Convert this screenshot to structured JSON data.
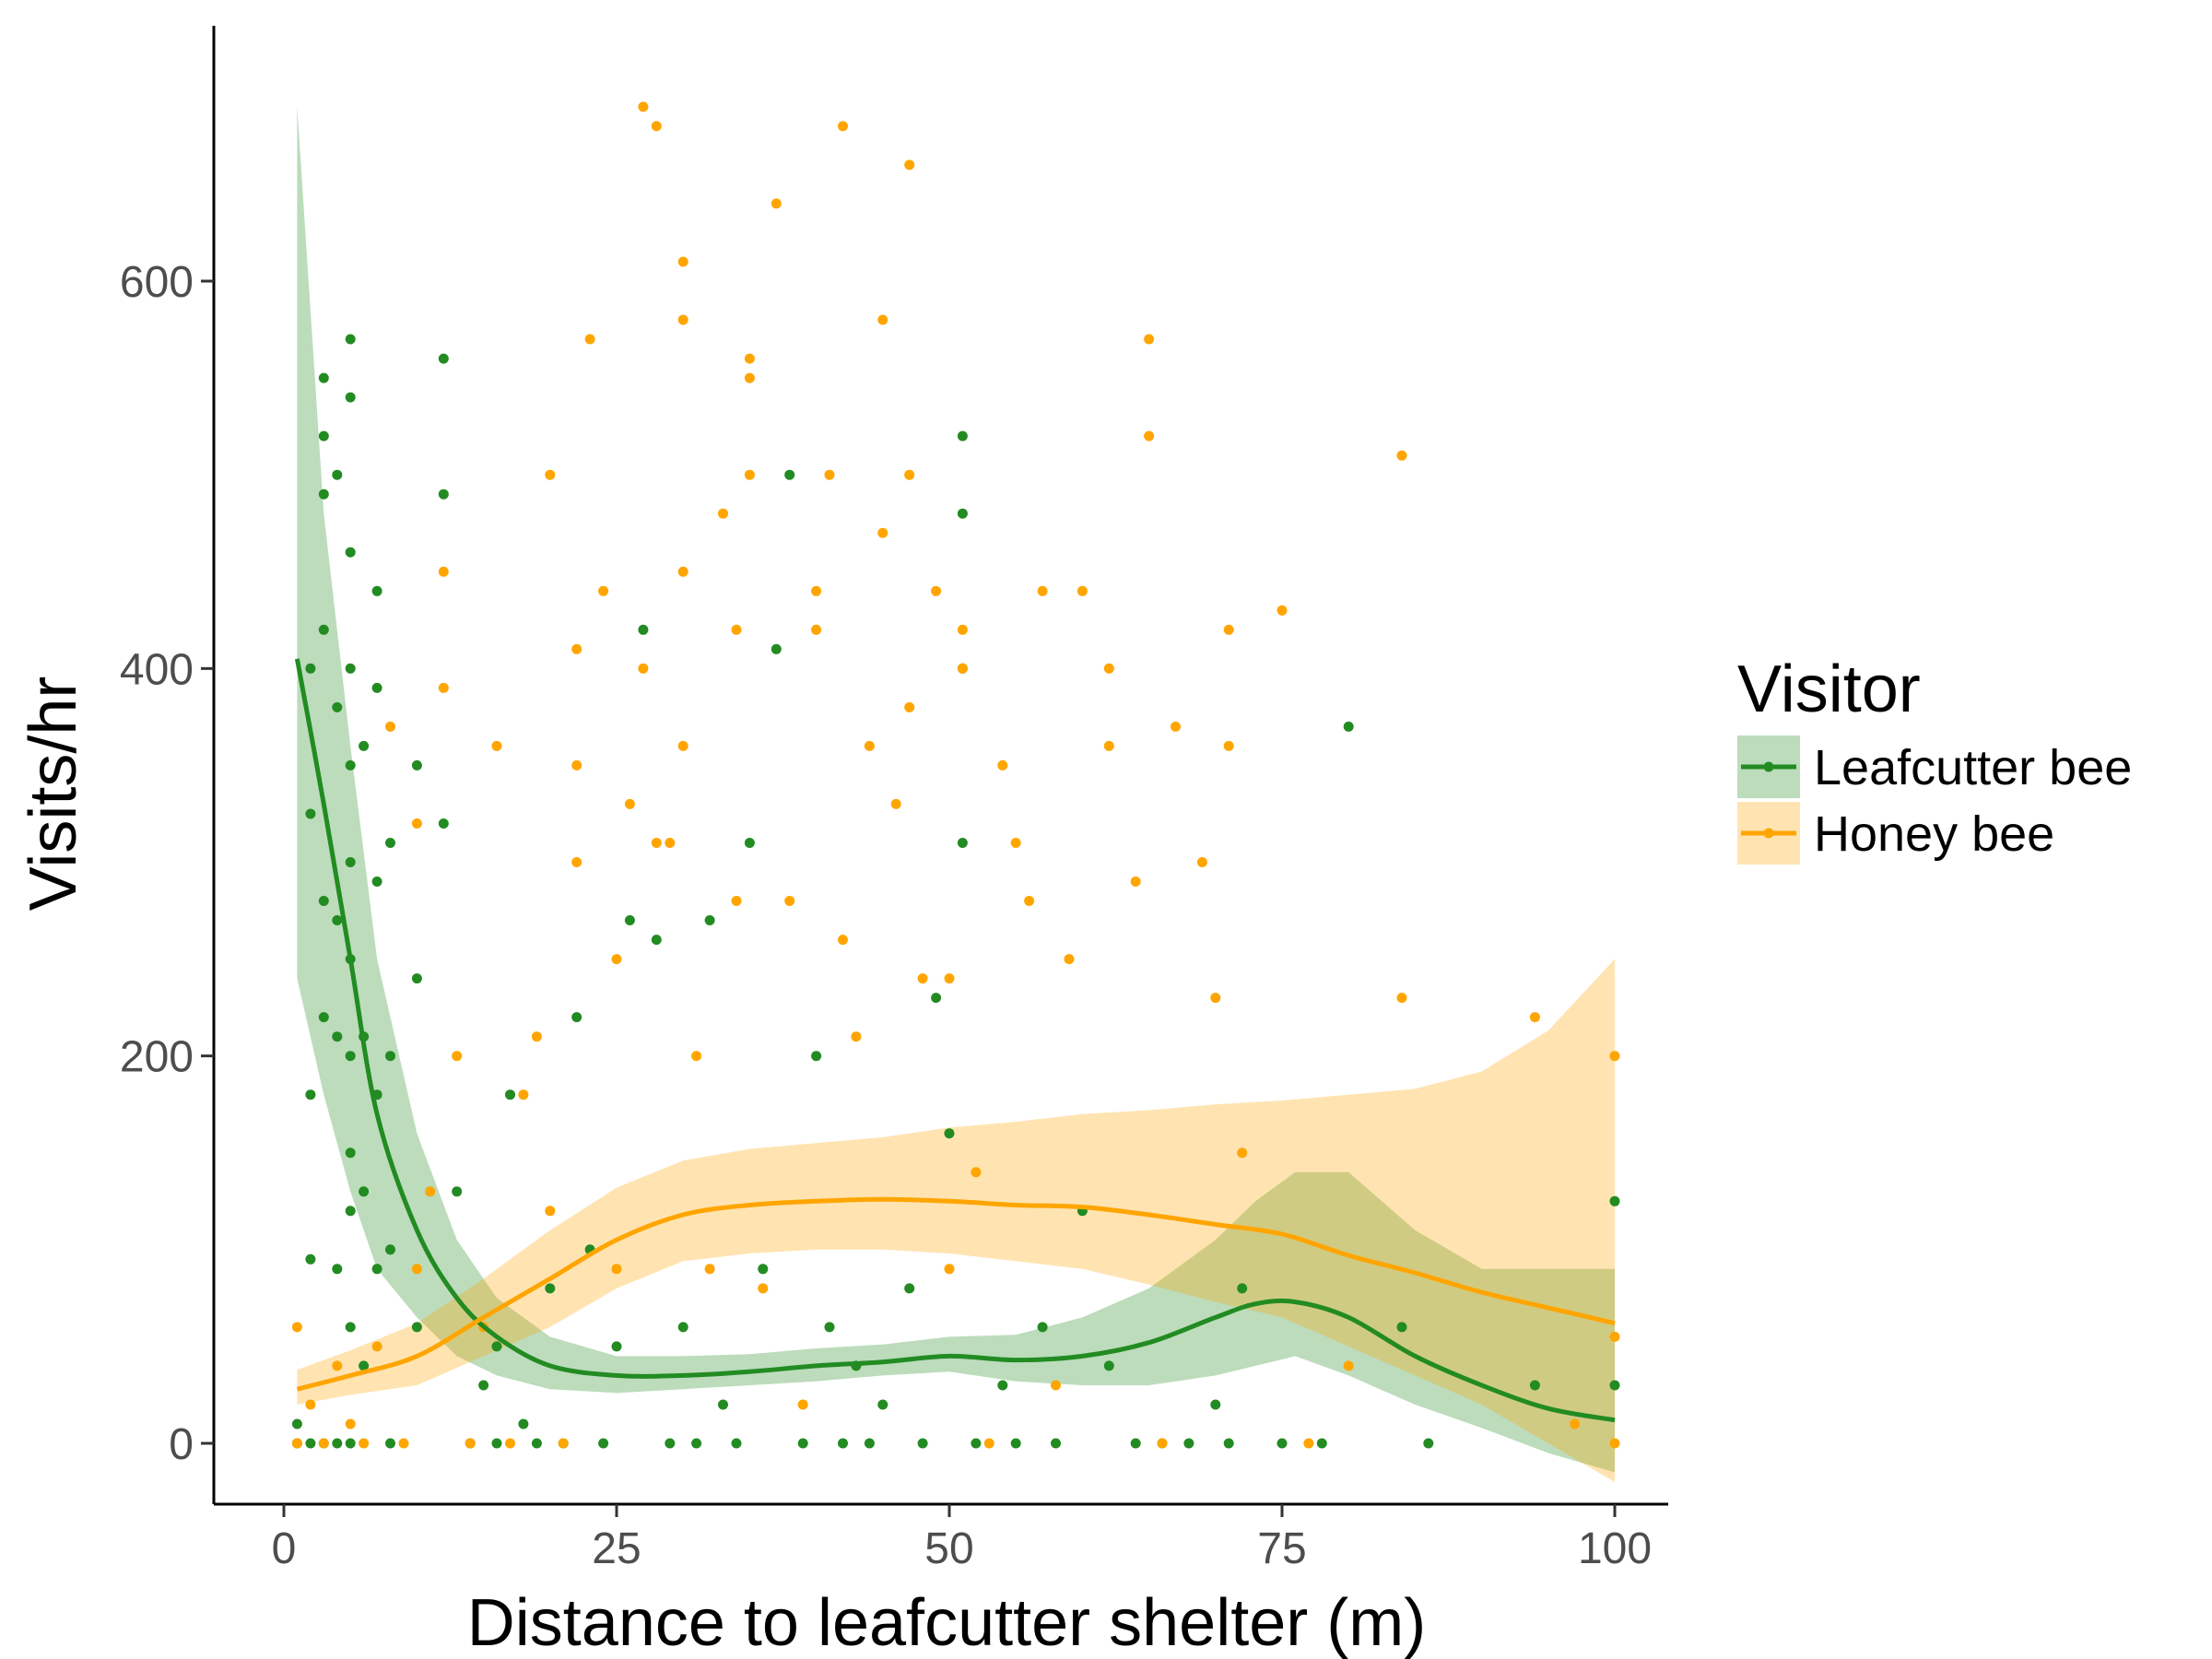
{
  "chart_data": {
    "type": "scatter",
    "xlabel": "Distance to leafcutter shelter (m)",
    "ylabel": "Visits/hr",
    "xlim": [
      -2,
      104
    ],
    "ylim": [
      -35,
      730
    ],
    "x_ticks": [
      0,
      25,
      50,
      75,
      100
    ],
    "y_ticks": [
      0,
      200,
      400,
      600
    ],
    "x_tick_labels": [
      "0",
      "25",
      "50",
      "75",
      "100"
    ],
    "y_tick_labels": [
      "0",
      "200",
      "400",
      "600"
    ],
    "grid": false,
    "legend": {
      "title": "Visitor",
      "position": "right",
      "entries": [
        "Leafcutter bee",
        "Honey bee"
      ]
    },
    "series": [
      {
        "name": "Leafcutter bee",
        "color": "#228B22",
        "band_color": "#228B22",
        "points": [
          [
            1,
            0
          ],
          [
            1,
            10
          ],
          [
            2,
            0
          ],
          [
            2,
            95
          ],
          [
            2,
            180
          ],
          [
            2,
            400
          ],
          [
            2,
            325
          ],
          [
            3,
            550
          ],
          [
            3,
            520
          ],
          [
            3,
            490
          ],
          [
            3,
            420
          ],
          [
            3,
            280
          ],
          [
            3,
            220
          ],
          [
            3,
            0
          ],
          [
            4,
            500
          ],
          [
            4,
            380
          ],
          [
            4,
            270
          ],
          [
            4,
            210
          ],
          [
            4,
            90
          ],
          [
            4,
            0
          ],
          [
            5,
            570
          ],
          [
            5,
            540
          ],
          [
            5,
            460
          ],
          [
            5,
            400
          ],
          [
            5,
            350
          ],
          [
            5,
            300
          ],
          [
            5,
            250
          ],
          [
            5,
            200
          ],
          [
            5,
            150
          ],
          [
            5,
            120
          ],
          [
            5,
            60
          ],
          [
            5,
            0
          ],
          [
            6,
            360
          ],
          [
            6,
            210
          ],
          [
            6,
            130
          ],
          [
            6,
            40
          ],
          [
            7,
            440
          ],
          [
            7,
            390
          ],
          [
            7,
            290
          ],
          [
            7,
            180
          ],
          [
            7,
            90
          ],
          [
            8,
            310
          ],
          [
            8,
            200
          ],
          [
            8,
            100
          ],
          [
            8,
            0
          ],
          [
            10,
            350
          ],
          [
            10,
            240
          ],
          [
            10,
            60
          ],
          [
            12,
            560
          ],
          [
            12,
            490
          ],
          [
            12,
            320
          ],
          [
            13,
            130
          ],
          [
            14,
            0
          ],
          [
            15,
            30
          ],
          [
            16,
            0
          ],
          [
            16,
            50
          ],
          [
            17,
            180
          ],
          [
            18,
            10
          ],
          [
            19,
            0
          ],
          [
            20,
            80
          ],
          [
            21,
            0
          ],
          [
            22,
            220
          ],
          [
            23,
            100
          ],
          [
            24,
            0
          ],
          [
            25,
            50
          ],
          [
            26,
            270
          ],
          [
            27,
            420
          ],
          [
            28,
            260
          ],
          [
            29,
            0
          ],
          [
            30,
            60
          ],
          [
            31,
            0
          ],
          [
            32,
            270
          ],
          [
            33,
            20
          ],
          [
            34,
            0
          ],
          [
            35,
            310
          ],
          [
            36,
            90
          ],
          [
            37,
            410
          ],
          [
            38,
            500
          ],
          [
            39,
            0
          ],
          [
            40,
            200
          ],
          [
            41,
            60
          ],
          [
            42,
            0
          ],
          [
            43,
            40
          ],
          [
            44,
            0
          ],
          [
            45,
            20
          ],
          [
            47,
            80
          ],
          [
            48,
            0
          ],
          [
            49,
            230
          ],
          [
            50,
            160
          ],
          [
            51,
            520
          ],
          [
            51,
            480
          ],
          [
            51,
            400
          ],
          [
            51,
            310
          ],
          [
            52,
            0
          ],
          [
            54,
            30
          ],
          [
            55,
            0
          ],
          [
            57,
            60
          ],
          [
            58,
            0
          ],
          [
            60,
            120
          ],
          [
            62,
            40
          ],
          [
            64,
            0
          ],
          [
            66,
            0
          ],
          [
            68,
            0
          ],
          [
            70,
            20
          ],
          [
            71,
            0
          ],
          [
            72,
            80
          ],
          [
            75,
            0
          ],
          [
            78,
            0
          ],
          [
            80,
            370
          ],
          [
            84,
            60
          ],
          [
            86,
            0
          ],
          [
            94,
            30
          ],
          [
            100,
            125
          ],
          [
            100,
            30
          ]
        ]
      },
      {
        "name": "Honey bee",
        "color": "#FFA500",
        "band_color": "#FFA500",
        "points": [
          [
            1,
            0
          ],
          [
            1,
            60
          ],
          [
            2,
            20
          ],
          [
            3,
            0
          ],
          [
            4,
            40
          ],
          [
            5,
            10
          ],
          [
            6,
            0
          ],
          [
            7,
            50
          ],
          [
            8,
            370
          ],
          [
            9,
            0
          ],
          [
            10,
            90
          ],
          [
            10,
            320
          ],
          [
            11,
            130
          ],
          [
            12,
            390
          ],
          [
            12,
            450
          ],
          [
            13,
            200
          ],
          [
            14,
            0
          ],
          [
            15,
            60
          ],
          [
            16,
            360
          ],
          [
            17,
            0
          ],
          [
            18,
            180
          ],
          [
            19,
            210
          ],
          [
            20,
            500
          ],
          [
            20,
            120
          ],
          [
            21,
            0
          ],
          [
            22,
            410
          ],
          [
            22,
            350
          ],
          [
            22,
            300
          ],
          [
            23,
            570
          ],
          [
            24,
            440
          ],
          [
            25,
            250
          ],
          [
            25,
            90
          ],
          [
            26,
            330
          ],
          [
            27,
            400
          ],
          [
            27,
            690
          ],
          [
            28,
            680
          ],
          [
            28,
            310
          ],
          [
            29,
            310
          ],
          [
            30,
            610
          ],
          [
            30,
            580
          ],
          [
            30,
            450
          ],
          [
            30,
            360
          ],
          [
            31,
            200
          ],
          [
            32,
            90
          ],
          [
            33,
            480
          ],
          [
            34,
            420
          ],
          [
            34,
            280
          ],
          [
            35,
            560
          ],
          [
            35,
            550
          ],
          [
            35,
            500
          ],
          [
            36,
            80
          ],
          [
            37,
            640
          ],
          [
            38,
            280
          ],
          [
            39,
            20
          ],
          [
            40,
            440
          ],
          [
            40,
            420
          ],
          [
            41,
            500
          ],
          [
            42,
            260
          ],
          [
            42,
            680
          ],
          [
            43,
            210
          ],
          [
            44,
            360
          ],
          [
            45,
            580
          ],
          [
            45,
            470
          ],
          [
            46,
            330
          ],
          [
            47,
            660
          ],
          [
            47,
            500
          ],
          [
            47,
            380
          ],
          [
            48,
            240
          ],
          [
            49,
            440
          ],
          [
            50,
            90
          ],
          [
            50,
            240
          ],
          [
            51,
            420
          ],
          [
            51,
            400
          ],
          [
            52,
            140
          ],
          [
            53,
            0
          ],
          [
            54,
            350
          ],
          [
            55,
            310
          ],
          [
            56,
            280
          ],
          [
            57,
            440
          ],
          [
            58,
            30
          ],
          [
            59,
            250
          ],
          [
            60,
            440
          ],
          [
            62,
            400
          ],
          [
            62,
            360
          ],
          [
            64,
            290
          ],
          [
            65,
            570
          ],
          [
            65,
            520
          ],
          [
            66,
            0
          ],
          [
            67,
            370
          ],
          [
            69,
            300
          ],
          [
            70,
            230
          ],
          [
            71,
            420
          ],
          [
            71,
            360
          ],
          [
            72,
            150
          ],
          [
            75,
            430
          ],
          [
            77,
            0
          ],
          [
            80,
            40
          ],
          [
            84,
            510
          ],
          [
            84,
            230
          ],
          [
            94,
            220
          ],
          [
            97,
            10
          ],
          [
            100,
            200
          ],
          [
            100,
            55
          ],
          [
            100,
            0
          ]
        ]
      }
    ],
    "smooth_lines": [
      {
        "name": "Leafcutter bee",
        "x": [
          1,
          3,
          5,
          7,
          10,
          13,
          16,
          20,
          25,
          30,
          35,
          40,
          45,
          50,
          55,
          60,
          65,
          70,
          73,
          76,
          80,
          85,
          90,
          95,
          100
        ],
        "y": [
          405,
          330,
          250,
          170,
          110,
          75,
          55,
          40,
          35,
          35,
          37,
          40,
          42,
          45,
          43,
          45,
          52,
          65,
          72,
          73,
          65,
          45,
          30,
          18,
          12
        ],
        "lower": [
          240,
          180,
          130,
          90,
          65,
          45,
          35,
          28,
          26,
          28,
          30,
          32,
          35,
          37,
          32,
          30,
          30,
          35,
          40,
          45,
          35,
          20,
          8,
          -5,
          -15
        ],
        "upper": [
          690,
          480,
          360,
          250,
          160,
          105,
          75,
          55,
          45,
          45,
          46,
          49,
          51,
          55,
          56,
          65,
          80,
          105,
          125,
          140,
          140,
          110,
          90,
          90,
          90
        ]
      },
      {
        "name": "Honey bee",
        "x": [
          1,
          5,
          10,
          15,
          20,
          25,
          30,
          35,
          40,
          45,
          50,
          55,
          60,
          65,
          70,
          75,
          80,
          85,
          90,
          95,
          100
        ],
        "y": [
          28,
          35,
          45,
          65,
          85,
          105,
          118,
          123,
          125,
          126,
          125,
          123,
          122,
          118,
          113,
          108,
          97,
          88,
          78,
          70,
          62
        ],
        "lower": [
          20,
          25,
          30,
          45,
          60,
          80,
          94,
          98,
          100,
          100,
          98,
          94,
          90,
          82,
          73,
          65,
          50,
          35,
          20,
          0,
          -20
        ],
        "upper": [
          38,
          48,
          62,
          85,
          110,
          132,
          146,
          152,
          155,
          158,
          163,
          166,
          170,
          172,
          175,
          177,
          180,
          183,
          192,
          213,
          250
        ]
      }
    ]
  }
}
